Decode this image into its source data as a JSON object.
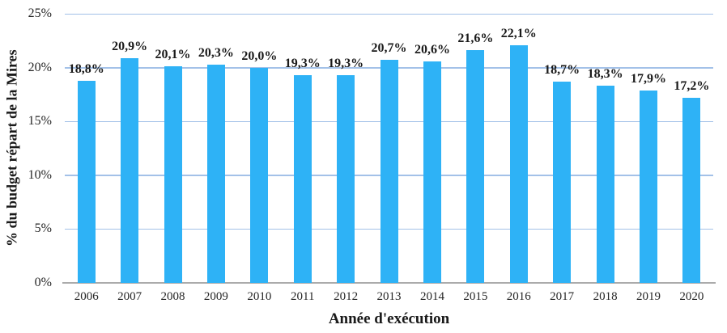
{
  "chart_data": {
    "type": "bar",
    "title": "",
    "xlabel": "Année d'exécution",
    "ylabel": "% du budget répart de la Mires",
    "categories": [
      "2006",
      "2007",
      "2008",
      "2009",
      "2010",
      "2011",
      "2012",
      "2013",
      "2014",
      "2015",
      "2016",
      "2017",
      "2018",
      "2019",
      "2020"
    ],
    "values": [
      18.8,
      20.9,
      20.1,
      20.3,
      20.0,
      19.3,
      19.3,
      20.7,
      20.6,
      21.6,
      22.1,
      18.7,
      18.3,
      17.9,
      17.2
    ],
    "value_labels": [
      "18,8%",
      "20,9%",
      "20,1%",
      "20,3%",
      "20,0%",
      "19,3%",
      "19,3%",
      "20,7%",
      "20,6%",
      "21,6%",
      "22,1%",
      "18,7%",
      "18,3%",
      "17,9%",
      "17,2%"
    ],
    "ylim": [
      0,
      25
    ],
    "yticks": [
      {
        "value": 0,
        "label": "0%"
      },
      {
        "value": 5,
        "label": "5%"
      },
      {
        "value": 10,
        "label": "10%"
      },
      {
        "value": 15,
        "label": "15%"
      },
      {
        "value": 20,
        "label": "20%"
      },
      {
        "value": 25,
        "label": "25%"
      }
    ],
    "grid": "horizontal",
    "legend": "none",
    "colors": {
      "bar": "#2EB2F6",
      "gridline": "#A3C1E8",
      "axis_line": "#ABABAB",
      "text": "#1A1A1A"
    }
  }
}
